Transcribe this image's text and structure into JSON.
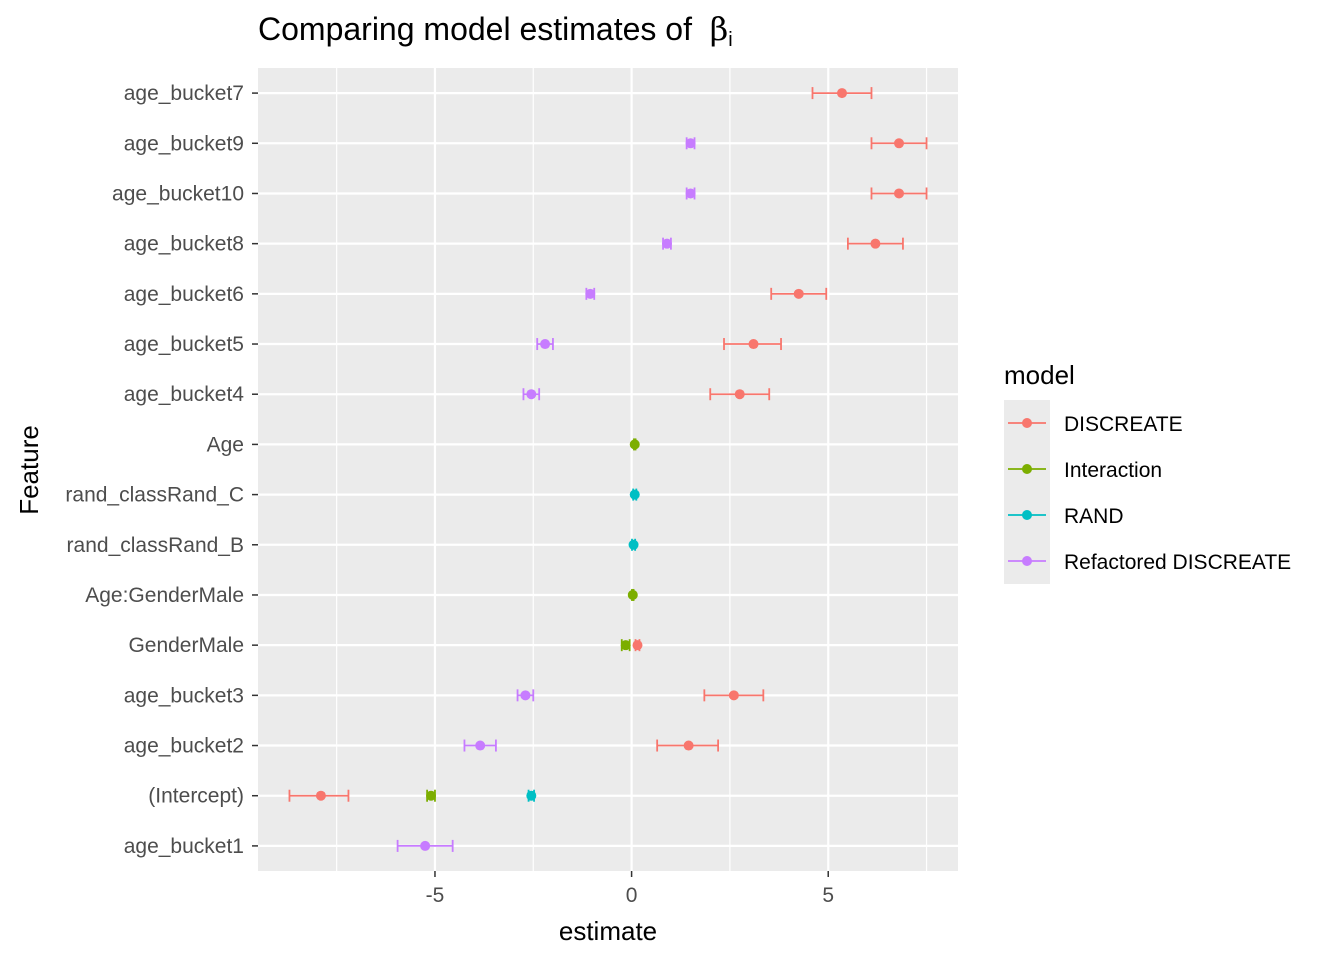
{
  "title_text": "Comparing model estimates of",
  "title_symbol": "β",
  "title_subscript": "i",
  "chart_data": {
    "type": "scatter",
    "subtype": "point-range",
    "xlabel": "estimate",
    "ylabel": "Feature",
    "xlim": [
      -9.5,
      8.3
    ],
    "x_ticks": [
      -5,
      0,
      5
    ],
    "x_tick_labels": [
      "-5",
      "0",
      "5"
    ],
    "grid": true,
    "legend": {
      "title": "model",
      "position": "right"
    },
    "categories": [
      "age_bucket7",
      "age_bucket9",
      "age_bucket10",
      "age_bucket8",
      "age_bucket6",
      "age_bucket5",
      "age_bucket4",
      "Age",
      "rand_classRand_C",
      "rand_classRand_B",
      "Age:GenderMale",
      "GenderMale",
      "age_bucket3",
      "age_bucket2",
      "(Intercept)",
      "age_bucket1"
    ],
    "series": [
      {
        "name": "DISCREATE",
        "color": "#F8766D",
        "points": [
          {
            "feature": "age_bucket7",
            "estimate": 5.35,
            "low": 4.6,
            "high": 6.1
          },
          {
            "feature": "age_bucket9",
            "estimate": 6.8,
            "low": 6.1,
            "high": 7.5
          },
          {
            "feature": "age_bucket10",
            "estimate": 6.8,
            "low": 6.1,
            "high": 7.5
          },
          {
            "feature": "age_bucket8",
            "estimate": 6.2,
            "low": 5.5,
            "high": 6.9
          },
          {
            "feature": "age_bucket6",
            "estimate": 4.25,
            "low": 3.55,
            "high": 4.95
          },
          {
            "feature": "age_bucket5",
            "estimate": 3.1,
            "low": 2.35,
            "high": 3.8
          },
          {
            "feature": "age_bucket4",
            "estimate": 2.75,
            "low": 2.0,
            "high": 3.5
          },
          {
            "feature": "GenderMale",
            "estimate": 0.15,
            "low": 0.1,
            "high": 0.2
          },
          {
            "feature": "age_bucket3",
            "estimate": 2.6,
            "low": 1.85,
            "high": 3.35
          },
          {
            "feature": "age_bucket2",
            "estimate": 1.45,
            "low": 0.65,
            "high": 2.2
          },
          {
            "feature": "(Intercept)",
            "estimate": -7.9,
            "low": -8.7,
            "high": -7.2
          }
        ]
      },
      {
        "name": "Interaction",
        "color": "#7CAE00",
        "points": [
          {
            "feature": "Age",
            "estimate": 0.08,
            "low": 0.06,
            "high": 0.1
          },
          {
            "feature": "Age:GenderMale",
            "estimate": 0.03,
            "low": 0.01,
            "high": 0.05
          },
          {
            "feature": "GenderMale",
            "estimate": -0.15,
            "low": -0.25,
            "high": -0.05
          },
          {
            "feature": "(Intercept)",
            "estimate": -5.1,
            "low": -5.2,
            "high": -5.0
          }
        ]
      },
      {
        "name": "RAND",
        "color": "#00BFC4",
        "points": [
          {
            "feature": "rand_classRand_C",
            "estimate": 0.08,
            "low": 0.04,
            "high": 0.12
          },
          {
            "feature": "rand_classRand_B",
            "estimate": 0.05,
            "low": 0.01,
            "high": 0.09
          },
          {
            "feature": "(Intercept)",
            "estimate": -2.55,
            "low": -2.62,
            "high": -2.48
          }
        ]
      },
      {
        "name": "Refactored DISCREATE",
        "color": "#C77CFF",
        "points": [
          {
            "feature": "age_bucket9",
            "estimate": 1.5,
            "low": 1.4,
            "high": 1.6
          },
          {
            "feature": "age_bucket10",
            "estimate": 1.5,
            "low": 1.4,
            "high": 1.6
          },
          {
            "feature": "age_bucket8",
            "estimate": 0.9,
            "low": 0.8,
            "high": 1.0
          },
          {
            "feature": "age_bucket6",
            "estimate": -1.05,
            "low": -1.15,
            "high": -0.95
          },
          {
            "feature": "age_bucket5",
            "estimate": -2.2,
            "low": -2.4,
            "high": -2.0
          },
          {
            "feature": "age_bucket4",
            "estimate": -2.55,
            "low": -2.75,
            "high": -2.35
          },
          {
            "feature": "age_bucket3",
            "estimate": -2.7,
            "low": -2.9,
            "high": -2.5
          },
          {
            "feature": "age_bucket2",
            "estimate": -3.85,
            "low": -4.25,
            "high": -3.45
          },
          {
            "feature": "age_bucket1",
            "estimate": -5.25,
            "low": -5.95,
            "high": -4.55
          }
        ]
      }
    ]
  }
}
